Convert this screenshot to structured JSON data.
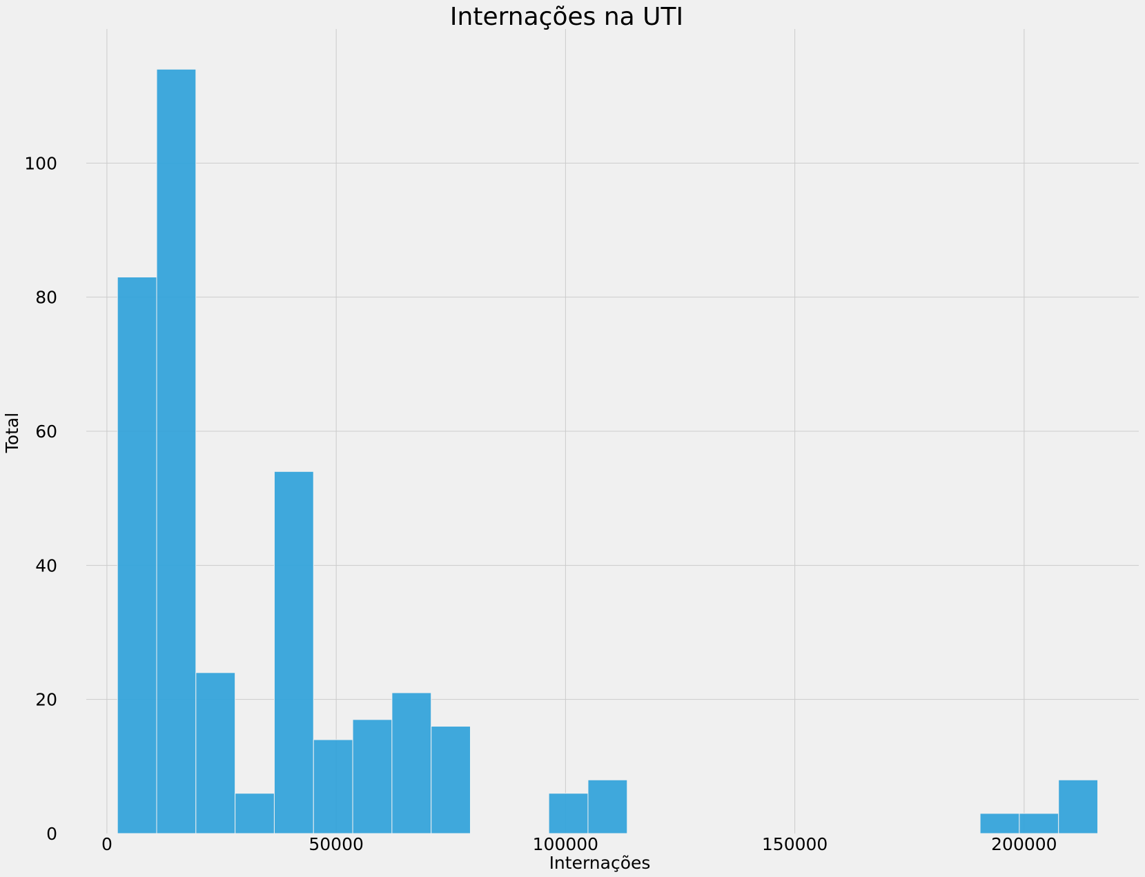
{
  "chart_data": {
    "type": "bar",
    "title": "Internações na UTI",
    "xlabel": "Internações",
    "ylabel": "Total",
    "xlim": [
      -4500,
      225000
    ],
    "ylim": [
      0,
      120
    ],
    "xticks": [
      0,
      50000,
      100000,
      150000,
      200000
    ],
    "yticks": [
      0,
      20,
      40,
      60,
      80,
      100
    ],
    "grid": true,
    "colors": {
      "bar": "#30a2da",
      "background": "#f0f0f0",
      "grid": "#cbcbcb"
    },
    "bins": [
      {
        "x0": 2300,
        "x1": 10850,
        "count": 83
      },
      {
        "x0": 10850,
        "x1": 19400,
        "count": 114
      },
      {
        "x0": 19400,
        "x1": 27950,
        "count": 24
      },
      {
        "x0": 27950,
        "x1": 36500,
        "count": 6
      },
      {
        "x0": 36500,
        "x1": 45050,
        "count": 54
      },
      {
        "x0": 45050,
        "x1": 53600,
        "count": 14
      },
      {
        "x0": 53600,
        "x1": 62150,
        "count": 17
      },
      {
        "x0": 62150,
        "x1": 70700,
        "count": 21
      },
      {
        "x0": 70700,
        "x1": 79250,
        "count": 16
      },
      {
        "x0": 96350,
        "x1": 104900,
        "count": 6
      },
      {
        "x0": 104900,
        "x1": 113450,
        "count": 8
      },
      {
        "x0": 190400,
        "x1": 198950,
        "count": 3
      },
      {
        "x0": 198950,
        "x1": 207500,
        "count": 3
      },
      {
        "x0": 207500,
        "x1": 216050,
        "count": 8
      }
    ]
  }
}
